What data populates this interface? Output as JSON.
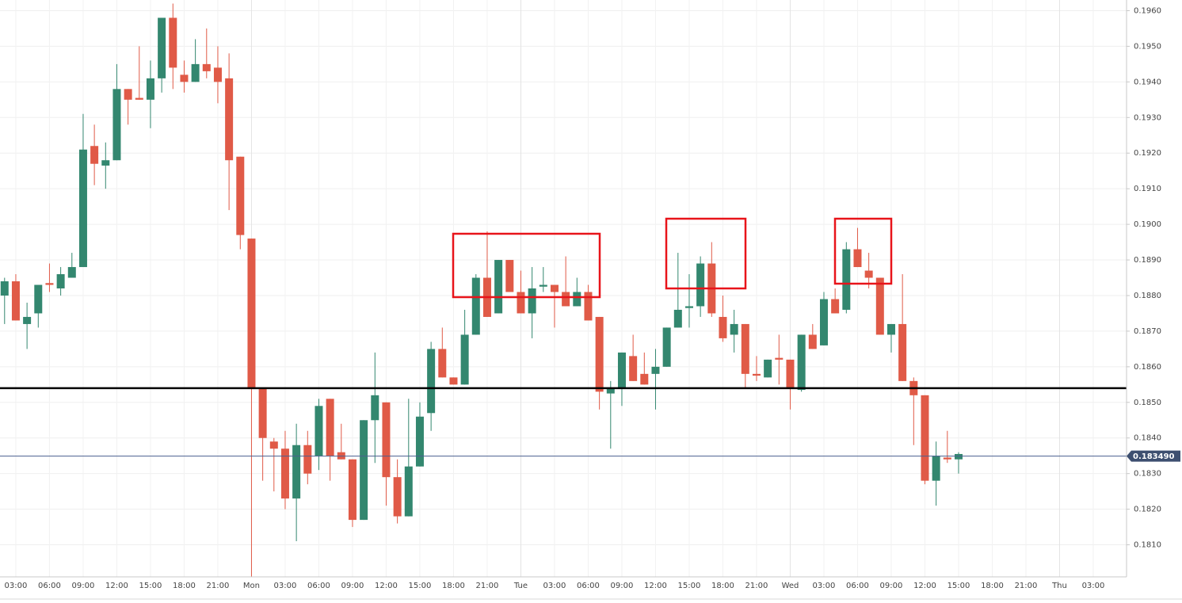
{
  "chart_data": {
    "type": "candlestick",
    "categories": [
      null,
      "03:00",
      null,
      null,
      "06:00",
      null,
      null,
      "09:00",
      null,
      null,
      "12:00",
      null,
      null,
      "15:00",
      null,
      null,
      "18:00",
      null,
      null,
      "21:00",
      null,
      null,
      "Mon",
      null,
      null,
      "03:00",
      null,
      null,
      "06:00",
      null,
      null,
      "09:00",
      null,
      null,
      "12:00",
      null,
      null,
      "15:00",
      null,
      null,
      "18:00",
      null,
      null,
      "21:00",
      null,
      null,
      "Tue",
      null,
      null,
      "03:00",
      null,
      null,
      "06:00",
      null,
      null,
      "09:00",
      null,
      null,
      "12:00",
      null,
      null,
      "15:00",
      null,
      null,
      "18:00",
      null,
      null,
      "21:00",
      null,
      null,
      "Wed",
      null,
      null,
      "03:00",
      null,
      null,
      "06:00",
      null,
      null,
      "09:00",
      null,
      null,
      "12:00",
      null,
      null,
      "15:00",
      null,
      null,
      "18:00",
      null,
      null,
      "21:00",
      null,
      null,
      "Thu",
      null,
      null,
      "03:00",
      null,
      null
    ],
    "open": [
      0.188,
      0.1884,
      0.1872,
      0.1875,
      0.18835,
      0.1882,
      0.1885,
      0.1888,
      0.1922,
      0.19165,
      0.1918,
      0.1938,
      0.19355,
      0.1935,
      0.1941,
      0.1958,
      0.1942,
      0.194,
      0.1945,
      0.1944,
      0.1941,
      0.1919,
      0.1896,
      0.1854,
      0.1839,
      0.1837,
      0.1823,
      0.1838,
      0.1835,
      0.1851,
      0.1836,
      0.1834,
      0.1817,
      0.1845,
      0.185,
      0.1829,
      0.1818,
      0.1832,
      0.1847,
      0.1865,
      0.1857,
      0.1855,
      0.1869,
      0.1885,
      0.1875,
      0.189,
      0.1881,
      0.1875,
      0.18825,
      0.1883,
      0.1881,
      0.1877,
      0.1881,
      0.1874,
      0.18525,
      0.1854,
      0.1863,
      0.1858,
      0.1858,
      0.186,
      0.1871,
      0.18765,
      0.1877,
      0.1889,
      0.1874,
      0.1869,
      0.1872,
      0.1858,
      0.1857,
      0.18625,
      0.1862,
      0.18535,
      0.1869,
      0.1866,
      0.1879,
      0.1876,
      0.1893,
      0.1887,
      0.1885,
      0.1869,
      0.1872,
      0.1856,
      0.1852,
      0.1828,
      0.18345,
      0.1834,
      null,
      null,
      null,
      null,
      null,
      null,
      null,
      null,
      null,
      null,
      null,
      null,
      null,
      null
    ],
    "high": [
      0.1885,
      0.1886,
      0.1878,
      0.1883,
      0.1889,
      0.1888,
      0.1892,
      0.1931,
      0.1928,
      0.1923,
      0.1945,
      0.1938,
      0.195,
      0.1946,
      0.1958,
      0.1962,
      0.1946,
      0.1952,
      0.1955,
      0.195,
      0.1948,
      0.1919,
      0.1896,
      0.1854,
      0.184,
      0.1842,
      0.1844,
      0.1842,
      0.1851,
      0.1851,
      0.1844,
      0.1834,
      0.1845,
      0.1864,
      0.185,
      0.1834,
      0.1851,
      0.185,
      0.1867,
      0.1871,
      0.1857,
      0.1876,
      0.1886,
      0.1898,
      0.189,
      0.189,
      0.1887,
      0.1888,
      0.1888,
      0.1883,
      0.1891,
      0.1885,
      0.1883,
      0.1874,
      0.1856,
      0.1864,
      0.1869,
      0.1864,
      0.1865,
      0.1871,
      0.1892,
      0.1886,
      0.1891,
      0.1895,
      0.188,
      0.1876,
      0.1872,
      0.1863,
      0.1862,
      0.1869,
      0.1862,
      0.1869,
      0.1872,
      0.1881,
      0.1882,
      0.1895,
      0.1899,
      0.1892,
      0.1885,
      0.1872,
      0.1886,
      0.1857,
      0.1852,
      0.1839,
      0.1842,
      0.1836,
      null,
      null,
      null,
      null,
      null,
      null,
      null,
      null,
      null,
      null,
      null,
      null,
      null,
      null
    ],
    "low": [
      0.1872,
      0.1873,
      0.1865,
      0.1871,
      0.1881,
      0.188,
      0.1885,
      0.1888,
      0.1911,
      0.191,
      0.1918,
      0.1928,
      0.1935,
      0.1927,
      0.1937,
      0.1938,
      0.1937,
      0.194,
      0.1941,
      0.1934,
      0.1904,
      0.1893,
      0.1801,
      0.1828,
      0.1825,
      0.182,
      0.1811,
      0.1827,
      0.1831,
      0.1828,
      0.1834,
      0.1815,
      0.1817,
      0.1833,
      0.1821,
      0.1816,
      0.1818,
      0.1832,
      0.1842,
      0.1857,
      0.1855,
      0.1855,
      0.1869,
      0.1874,
      0.1875,
      0.1881,
      0.1875,
      0.1868,
      0.1881,
      0.1871,
      0.1877,
      0.1877,
      0.1873,
      0.1848,
      0.1837,
      0.1849,
      0.1856,
      0.1855,
      0.1848,
      0.186,
      0.1871,
      0.1871,
      0.1874,
      0.1874,
      0.1867,
      0.1864,
      0.1854,
      0.1856,
      0.1857,
      0.1855,
      0.1848,
      0.1853,
      0.1865,
      0.1866,
      0.1875,
      0.1875,
      0.1888,
      0.1882,
      0.1869,
      0.1864,
      0.1856,
      0.1838,
      0.1827,
      0.1821,
      0.1833,
      0.183,
      null,
      null,
      null,
      null,
      null,
      null,
      null,
      null,
      null,
      null,
      null,
      null,
      null,
      null
    ],
    "close": [
      0.1884,
      0.1873,
      0.1874,
      0.1883,
      0.1883,
      0.1886,
      0.1888,
      0.1921,
      0.1917,
      0.1918,
      0.1938,
      0.1935,
      0.1935,
      0.1941,
      0.1958,
      0.1944,
      0.194,
      0.1945,
      0.1943,
      0.194,
      0.1918,
      0.1897,
      0.1854,
      0.184,
      0.1837,
      0.1823,
      0.1838,
      0.183,
      0.1849,
      0.1835,
      0.1834,
      0.1817,
      0.1845,
      0.1852,
      0.1829,
      0.1818,
      0.1832,
      0.1846,
      0.1865,
      0.1857,
      0.1855,
      0.1869,
      0.1885,
      0.1874,
      0.189,
      0.1881,
      0.1875,
      0.1882,
      0.1883,
      0.1881,
      0.1877,
      0.1881,
      0.1873,
      0.1853,
      0.1854,
      0.1864,
      0.1856,
      0.1855,
      0.186,
      0.1871,
      0.1876,
      0.1877,
      0.1889,
      0.1875,
      0.1868,
      0.1872,
      0.1858,
      0.18575,
      0.1862,
      0.1862,
      0.1854,
      0.1869,
      0.1865,
      0.1879,
      0.1875,
      0.1893,
      0.1888,
      0.1885,
      0.1869,
      0.1872,
      0.1856,
      0.1852,
      0.1828,
      0.1835,
      0.1834,
      0.18355,
      null,
      null,
      null,
      null,
      null,
      null,
      null,
      null,
      null,
      null,
      null,
      null,
      null,
      null
    ],
    "up_color": "#33876f",
    "down_color": "#e05a47",
    "ylim": [
      0.1801,
      0.1963
    ],
    "yticks": [
      {
        "value": 0.181,
        "label": "0.1810"
      },
      {
        "value": 0.182,
        "label": "0.1820"
      },
      {
        "value": 0.183,
        "label": "0.1830"
      },
      {
        "value": 0.184,
        "label": "0.1840"
      },
      {
        "value": 0.185,
        "label": "0.1850"
      },
      {
        "value": 0.186,
        "label": "0.1860"
      },
      {
        "value": 0.187,
        "label": "0.1870"
      },
      {
        "value": 0.188,
        "label": "0.1880"
      },
      {
        "value": 0.189,
        "label": "0.1890"
      },
      {
        "value": 0.19,
        "label": "0.1900"
      },
      {
        "value": 0.191,
        "label": "0.1910"
      },
      {
        "value": 0.192,
        "label": "0.1920"
      },
      {
        "value": 0.193,
        "label": "0.1930"
      },
      {
        "value": 0.194,
        "label": "0.1940"
      },
      {
        "value": 0.195,
        "label": "0.1950"
      },
      {
        "value": 0.196,
        "label": "0.1960"
      }
    ],
    "grid": true,
    "support_level": 0.1854,
    "current_price": {
      "value": 0.18349,
      "label": "0.183490"
    }
  }
}
